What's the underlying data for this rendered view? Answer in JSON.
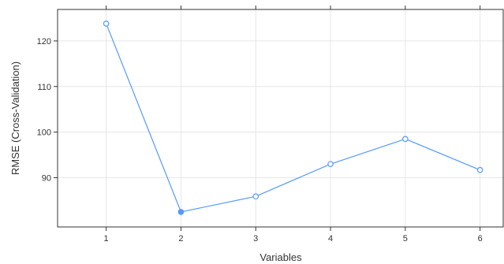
{
  "chart_data": {
    "type": "line",
    "xlabel": "Variables",
    "ylabel": "RMSE (Cross-Validation)",
    "x": [
      1,
      2,
      3,
      4,
      5,
      6
    ],
    "xticks": [
      1,
      2,
      3,
      4,
      5,
      6
    ],
    "yticks": [
      90,
      100,
      110,
      120
    ],
    "xlim": [
      0.35,
      6.32
    ],
    "ylim": [
      79.2,
      126.9
    ],
    "grid": true,
    "series": [
      {
        "values": [
          123.8,
          82.5,
          85.9,
          93.0,
          98.5,
          91.7
        ],
        "color": "#5599ff",
        "selected_index": 1
      }
    ]
  }
}
